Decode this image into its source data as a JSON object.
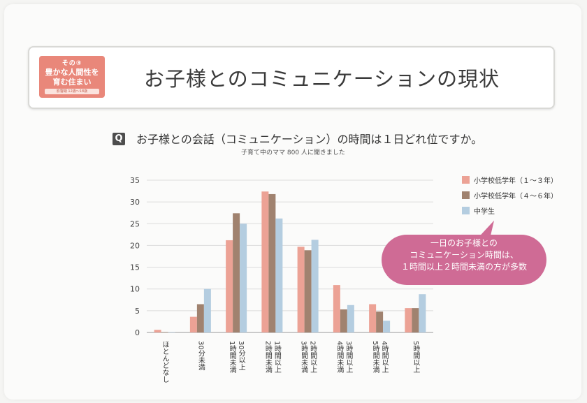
{
  "header": {
    "badge_top": "その③",
    "badge_line1": "豊かな人間性を",
    "badge_line2": "育む住まい",
    "badge_bottom": "影響期 12歳〜18歳",
    "title": "お子様とのコミュニケーションの現状"
  },
  "question": {
    "icon": "Q",
    "text": "お子様との会話（コミュニケーション）の時間は１日どれ位ですか。",
    "sub": "子育て中のママ 800 人に聞きました"
  },
  "callout": {
    "line1": "一日のお子様との",
    "line2": "コミュニケーション時間は、",
    "line3": "１時間以上２時間未満の方が多数"
  },
  "colors": {
    "series1": "#eca295",
    "series2": "#a0826f",
    "series3": "#b4cde0",
    "callout": "#cf6b95",
    "badge": "#e9877a"
  },
  "chart_data": {
    "type": "bar",
    "categories": [
      "ほとんどなし",
      "30分未満",
      "30分以上\n1時間未満",
      "1時間以上\n2時間未満",
      "2時間以上\n3時間未満",
      "3時間以上\n4時間未満",
      "4時間以上\n5時間未満",
      "5時間以上"
    ],
    "series": [
      {
        "name": "小学校低学年（１〜３年）",
        "values": [
          0.6,
          3.6,
          21.2,
          32.4,
          19.7,
          10.9,
          6.5,
          5.6
        ]
      },
      {
        "name": "小学校低学年（４〜６年）",
        "values": [
          0.1,
          6.5,
          27.4,
          31.8,
          18.9,
          5.3,
          4.8,
          5.6
        ]
      },
      {
        "name": "中学生",
        "values": [
          0.1,
          10.0,
          25.0,
          26.2,
          21.3,
          6.3,
          2.7,
          8.8
        ]
      }
    ],
    "yticks": [
      0,
      5,
      10,
      15,
      20,
      25,
      30,
      35
    ],
    "ylim": [
      0,
      35
    ],
    "grid": true,
    "legend": "top-right"
  }
}
